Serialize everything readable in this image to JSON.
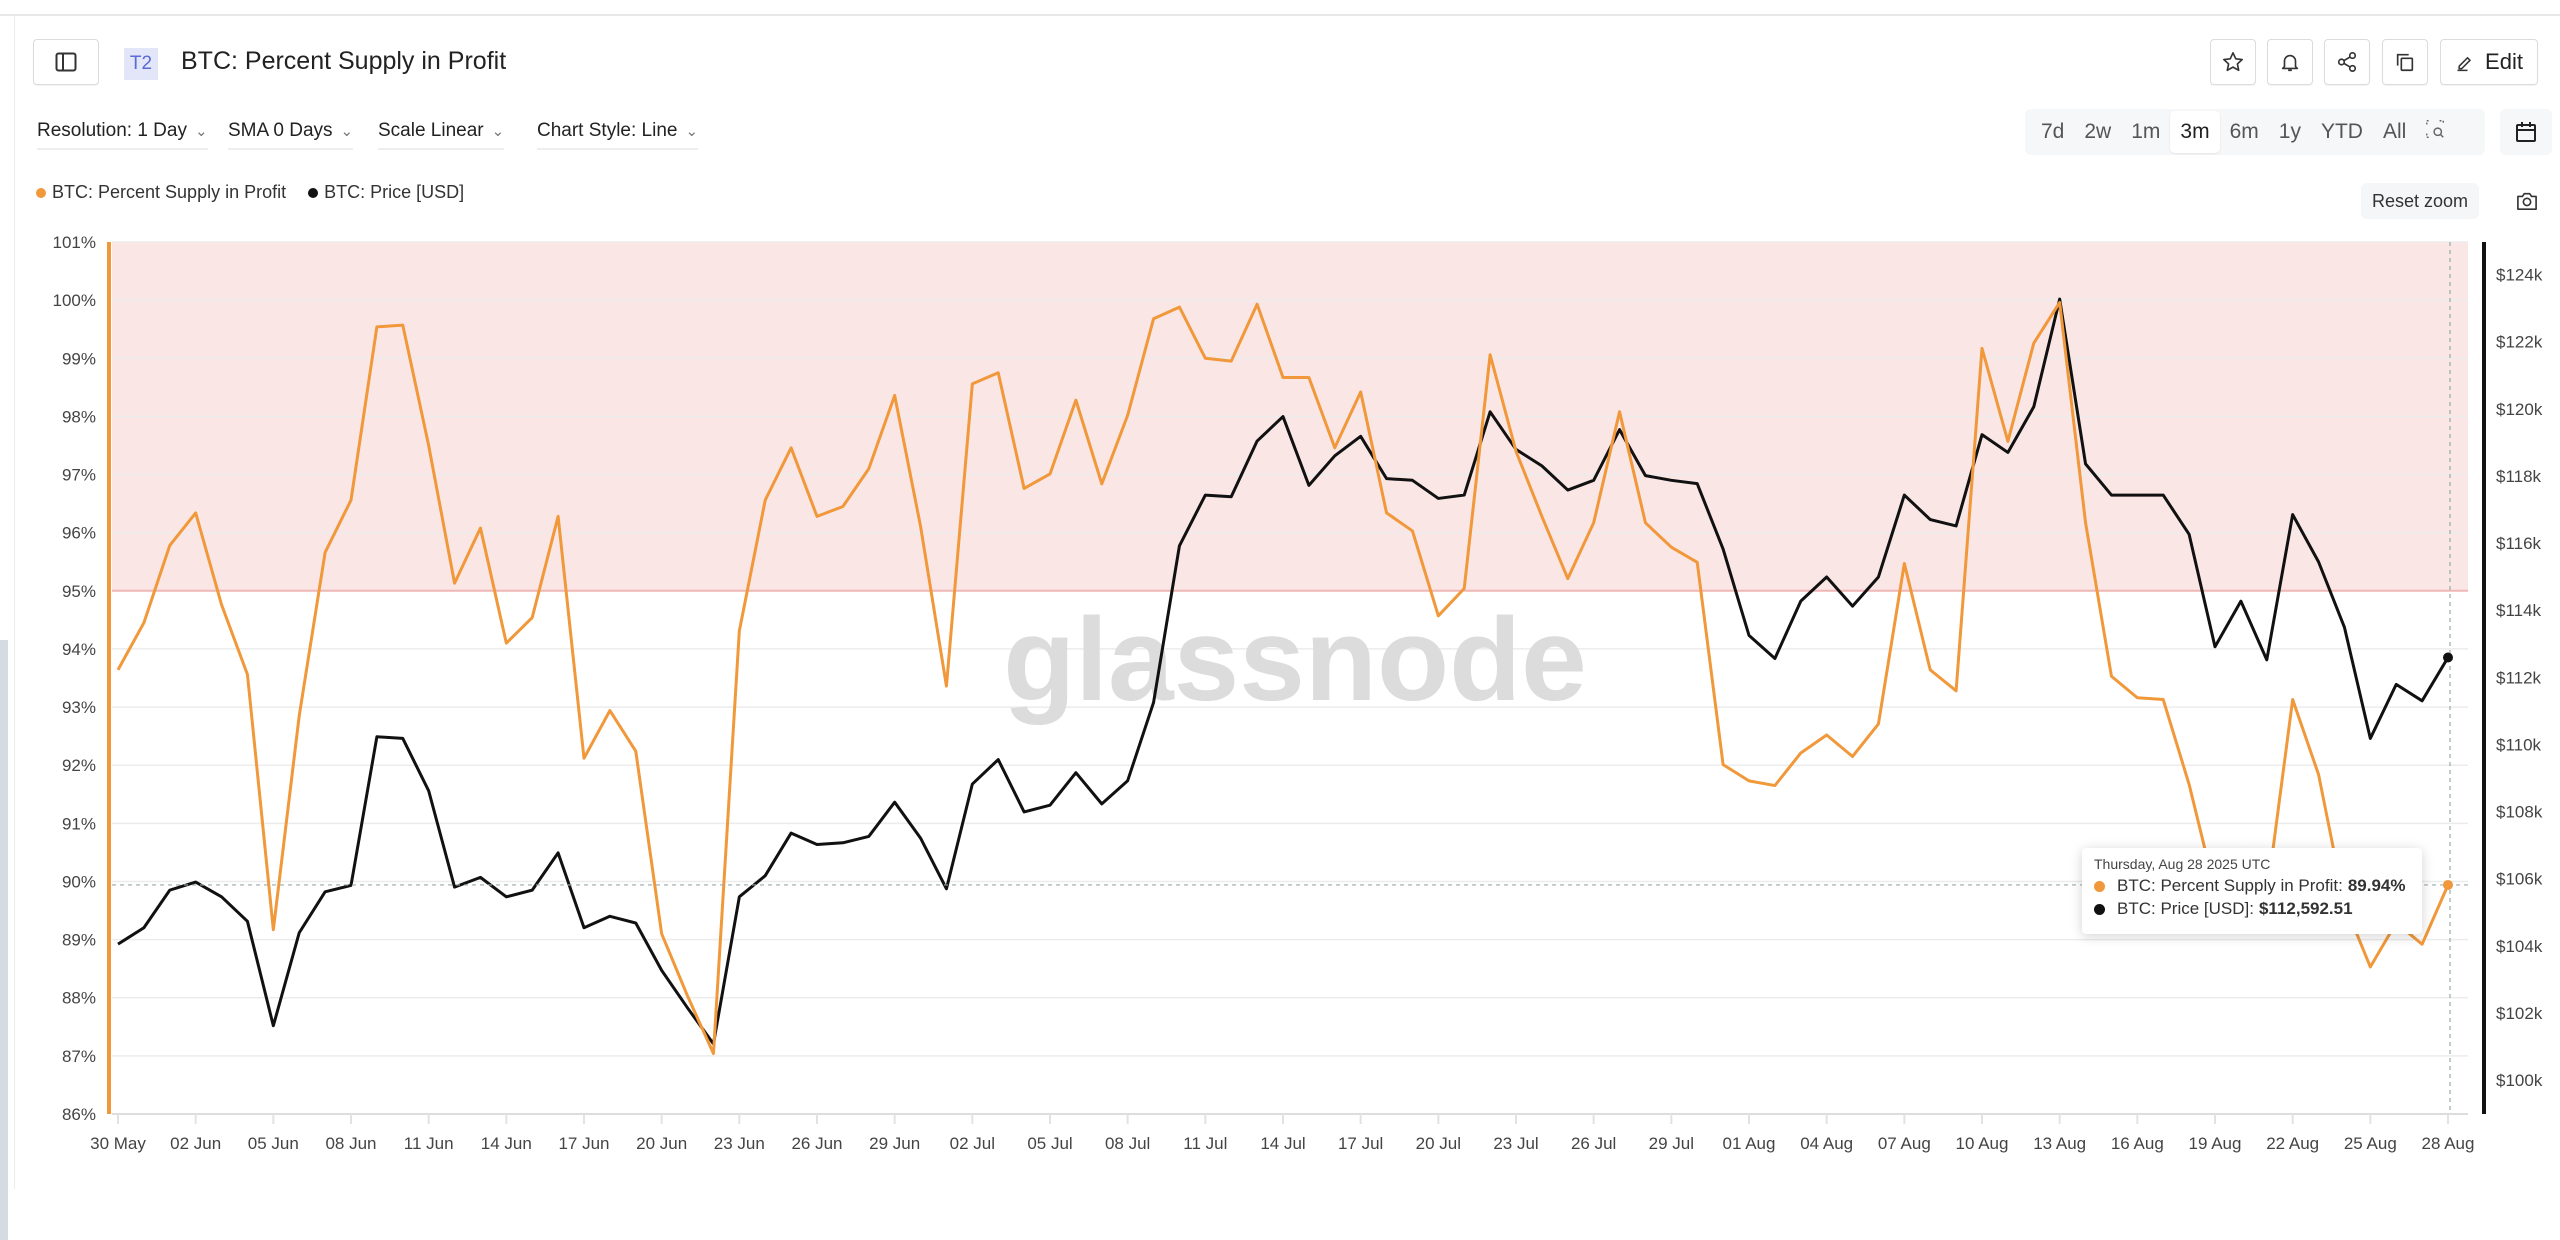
{
  "header": {
    "badge": "T2",
    "title": "BTC: Percent Supply in Profit",
    "edit_label": "Edit"
  },
  "controls": {
    "resolution": "Resolution: 1 Day",
    "sma": "SMA 0 Days",
    "scale": "Scale Linear",
    "chart_style": "Chart Style: Line"
  },
  "range_options": [
    "7d",
    "2w",
    "1m",
    "3m",
    "6m",
    "1y",
    "YTD",
    "All"
  ],
  "range_active": "3m",
  "reset_zoom": "Reset zoom",
  "watermark": "glassnode",
  "colors": {
    "supply": "#f0983a",
    "price": "#111111",
    "zone_fill": "#fbe6e6",
    "zone_line": "#efb6b6"
  },
  "tooltip": {
    "date": "Thursday, Aug 28 2025 UTC",
    "supply_label": "BTC: Percent Supply in Profit:",
    "supply_value": "89.94%",
    "price_label": "BTC: Price [USD]:",
    "price_value": "$112,592.51"
  },
  "chart_data": {
    "type": "line",
    "title": "BTC: Percent Supply in Profit",
    "legend": [
      "BTC: Percent Supply in Profit",
      "BTC: Price [USD]"
    ],
    "legend_placement": "top-left",
    "x_start": "2025-05-30",
    "x_end": "2025-08-28",
    "x_tick_labels": [
      "30 May",
      "02 Jun",
      "05 Jun",
      "08 Jun",
      "11 Jun",
      "14 Jun",
      "17 Jun",
      "20 Jun",
      "23 Jun",
      "26 Jun",
      "29 Jun",
      "02 Jul",
      "05 Jul",
      "08 Jul",
      "11 Jul",
      "14 Jul",
      "17 Jul",
      "20 Jul",
      "23 Jul",
      "26 Jul",
      "29 Jul",
      "01 Aug",
      "04 Aug",
      "07 Aug",
      "10 Aug",
      "13 Aug",
      "16 Aug",
      "19 Aug",
      "22 Aug",
      "25 Aug",
      "28 Aug"
    ],
    "y_left": {
      "label": "Percent Supply in Profit",
      "range": [
        86,
        101
      ],
      "ticks": [
        "86%",
        "87%",
        "88%",
        "89%",
        "90%",
        "91%",
        "92%",
        "93%",
        "94%",
        "95%",
        "96%",
        "97%",
        "98%",
        "99%",
        "100%",
        "101%"
      ]
    },
    "y_right": {
      "label": "Price [USD]",
      "range": [
        98.99,
        124.97
      ],
      "unit": "thousand USD",
      "ticks": [
        "$100k",
        "$102k",
        "$104k",
        "$106k",
        "$108k",
        "$110k",
        "$112k",
        "$114k",
        "$116k",
        "$118k",
        "$120k",
        "$122k",
        "$124k"
      ],
      "tick_values": [
        100,
        102,
        104,
        106,
        108,
        110,
        112,
        114,
        116,
        118,
        120,
        122,
        124
      ]
    },
    "highlight_band": {
      "from": 95,
      "to": 101
    },
    "grid": true,
    "series": [
      {
        "name": "BTC: Percent Supply in Profit",
        "axis": "left",
        "values": [
          93.64,
          94.45,
          95.78,
          96.34,
          94.76,
          93.56,
          89.17,
          92.85,
          95.66,
          96.56,
          99.54,
          99.57,
          97.5,
          95.13,
          96.08,
          94.1,
          94.54,
          96.28,
          92.12,
          92.94,
          92.24,
          89.1,
          88.03,
          87.04,
          94.31,
          96.56,
          97.46,
          96.28,
          96.45,
          97.1,
          98.36,
          96.11,
          93.36,
          98.56,
          98.75,
          96.76,
          97.01,
          98.28,
          96.84,
          98.02,
          99.68,
          99.88,
          99.0,
          98.95,
          99.93,
          98.67,
          98.67,
          97.46,
          98.42,
          96.34,
          96.03,
          94.57,
          95.04,
          99.06,
          97.4,
          96.28,
          95.21,
          96.17,
          98.08,
          96.17,
          95.75,
          95.49,
          92.01,
          91.73,
          91.65,
          92.21,
          92.52,
          92.15,
          92.71,
          95.47,
          93.64,
          93.28,
          99.17,
          97.57,
          99.26,
          99.96,
          96.17,
          93.53,
          93.16,
          93.13,
          91.67,
          89.85,
          90.55,
          89.74,
          93.13,
          91.84,
          89.62,
          88.53,
          89.29,
          88.92,
          89.94
        ]
      },
      {
        "name": "BTC: Price [USD]",
        "axis": "right",
        "unit": "thousand USD",
        "values": [
          104.05,
          104.54,
          105.66,
          105.9,
          105.46,
          104.73,
          101.62,
          104.39,
          105.61,
          105.8,
          110.23,
          110.18,
          108.62,
          105.75,
          106.04,
          105.46,
          105.66,
          106.77,
          104.54,
          104.88,
          104.68,
          103.27,
          102.15,
          101.08,
          105.46,
          106.09,
          107.36,
          107.02,
          107.07,
          107.26,
          108.28,
          107.21,
          105.7,
          108.82,
          109.55,
          107.99,
          108.19,
          109.16,
          108.23,
          108.92,
          111.25,
          115.92,
          117.43,
          117.38,
          119.04,
          119.77,
          117.72,
          118.6,
          119.18,
          117.92,
          117.87,
          117.33,
          117.43,
          119.91,
          118.79,
          118.3,
          117.58,
          117.87,
          119.38,
          118.01,
          117.87,
          117.77,
          115.82,
          113.25,
          112.56,
          114.27,
          114.99,
          114.12,
          114.99,
          117.43,
          116.7,
          116.51,
          119.23,
          118.7,
          120.06,
          123.27,
          118.36,
          117.43,
          117.43,
          117.43,
          116.26,
          112.91,
          114.27,
          112.52,
          116.85,
          115.44,
          113.49,
          110.18,
          111.79,
          111.3,
          112.59
        ]
      }
    ]
  }
}
